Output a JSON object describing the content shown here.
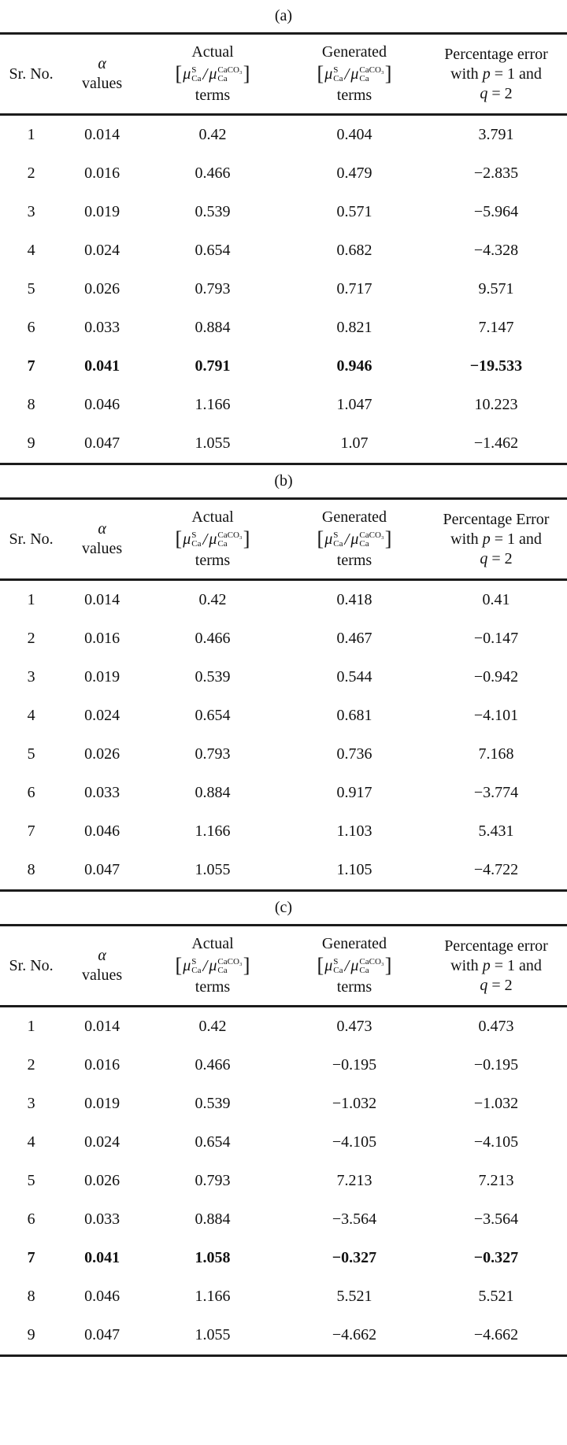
{
  "page": {
    "background": "#ffffff",
    "text_color": "#111111",
    "rule_color": "#1c1c1c"
  },
  "formula": {
    "open": "[",
    "mu": "μ",
    "sup_numerator": "S",
    "sup_denominator": "CaCO₃",
    "sub": "Ca",
    "slash": "/",
    "close": "]"
  },
  "tables": [
    {
      "caption": "(a)",
      "header": {
        "col1": "Sr. No.",
        "col2_line1": "α",
        "col2_line2": "values",
        "col3_line1": "Actual",
        "col3_line3": "terms",
        "col4_line1": "Generated",
        "col4_line3": "terms",
        "col5_lines": [
          [
            {
              "text": "Percentage error"
            }
          ],
          [
            {
              "text": "with "
            },
            {
              "text": "p",
              "italic": true
            },
            {
              "text": " = 1 and"
            }
          ],
          [
            {
              "text": "q",
              "italic": true
            },
            {
              "text": " = 2"
            }
          ]
        ]
      },
      "rows": [
        {
          "sr": "1",
          "alpha": "0.014",
          "actual": "0.42",
          "generated": "0.404",
          "error": "3.791",
          "bold": false
        },
        {
          "sr": "2",
          "alpha": "0.016",
          "actual": "0.466",
          "generated": "0.479",
          "error": "−2.835",
          "bold": false
        },
        {
          "sr": "3",
          "alpha": "0.019",
          "actual": "0.539",
          "generated": "0.571",
          "error": "−5.964",
          "bold": false
        },
        {
          "sr": "4",
          "alpha": "0.024",
          "actual": "0.654",
          "generated": "0.682",
          "error": "−4.328",
          "bold": false
        },
        {
          "sr": "5",
          "alpha": "0.026",
          "actual": "0.793",
          "generated": "0.717",
          "error": "9.571",
          "bold": false
        },
        {
          "sr": "6",
          "alpha": "0.033",
          "actual": "0.884",
          "generated": "0.821",
          "error": "7.147",
          "bold": false
        },
        {
          "sr": "7",
          "alpha": "0.041",
          "actual": "0.791",
          "generated": "0.946",
          "error": "−19.533",
          "bold": true
        },
        {
          "sr": "8",
          "alpha": "0.046",
          "actual": "1.166",
          "generated": "1.047",
          "error": "10.223",
          "bold": false
        },
        {
          "sr": "9",
          "alpha": "0.047",
          "actual": "1.055",
          "generated": "1.07",
          "error": "−1.462",
          "bold": false
        }
      ]
    },
    {
      "caption": "(b)",
      "header": {
        "col1": "Sr. No.",
        "col2_line1": "α",
        "col2_line2": "values",
        "col3_line1": "Actual",
        "col3_line3": "terms",
        "col4_line1": "Generated",
        "col4_line3": "terms",
        "col5_lines": [
          [
            {
              "text": "Percentage Error"
            }
          ],
          [
            {
              "text": "with "
            },
            {
              "text": "p",
              "italic": true
            },
            {
              "text": " = 1 and"
            }
          ],
          [
            {
              "text": "q",
              "italic": true
            },
            {
              "text": " = 2"
            }
          ]
        ]
      },
      "rows": [
        {
          "sr": "1",
          "alpha": "0.014",
          "actual": "0.42",
          "generated": "0.418",
          "error": "0.41",
          "bold": false
        },
        {
          "sr": "2",
          "alpha": "0.016",
          "actual": "0.466",
          "generated": "0.467",
          "error": "−0.147",
          "bold": false
        },
        {
          "sr": "3",
          "alpha": "0.019",
          "actual": "0.539",
          "generated": "0.544",
          "error": "−0.942",
          "bold": false
        },
        {
          "sr": "4",
          "alpha": "0.024",
          "actual": "0.654",
          "generated": "0.681",
          "error": "−4.101",
          "bold": false
        },
        {
          "sr": "5",
          "alpha": "0.026",
          "actual": "0.793",
          "generated": "0.736",
          "error": "7.168",
          "bold": false
        },
        {
          "sr": "6",
          "alpha": "0.033",
          "actual": "0.884",
          "generated": "0.917",
          "error": "−3.774",
          "bold": false
        },
        {
          "sr": "7",
          "alpha": "0.046",
          "actual": "1.166",
          "generated": "1.103",
          "error": "5.431",
          "bold": false
        },
        {
          "sr": "8",
          "alpha": "0.047",
          "actual": "1.055",
          "generated": "1.105",
          "error": "−4.722",
          "bold": false
        }
      ]
    },
    {
      "caption": "(c)",
      "header": {
        "col1": "Sr. No.",
        "col2_line1": "α",
        "col2_line2": "values",
        "col3_line1": "Actual",
        "col3_line3": "terms",
        "col4_line1": "Generated",
        "col4_line3": "terms",
        "col5_lines": [
          [
            {
              "text": "Percentage error"
            }
          ],
          [
            {
              "text": "with "
            },
            {
              "text": "p",
              "italic": true
            },
            {
              "text": " = 1 and"
            }
          ],
          [
            {
              "text": "q",
              "italic": true
            },
            {
              "text": " = 2"
            }
          ]
        ]
      },
      "rows": [
        {
          "sr": "1",
          "alpha": "0.014",
          "actual": "0.42",
          "generated": "0.473",
          "error": "0.473",
          "bold": false
        },
        {
          "sr": "2",
          "alpha": "0.016",
          "actual": "0.466",
          "generated": "−0.195",
          "error": "−0.195",
          "bold": false
        },
        {
          "sr": "3",
          "alpha": "0.019",
          "actual": "0.539",
          "generated": "−1.032",
          "error": "−1.032",
          "bold": false
        },
        {
          "sr": "4",
          "alpha": "0.024",
          "actual": "0.654",
          "generated": "−4.105",
          "error": "−4.105",
          "bold": false
        },
        {
          "sr": "5",
          "alpha": "0.026",
          "actual": "0.793",
          "generated": "7.213",
          "error": "7.213",
          "bold": false
        },
        {
          "sr": "6",
          "alpha": "0.033",
          "actual": "0.884",
          "generated": "−3.564",
          "error": "−3.564",
          "bold": false
        },
        {
          "sr": "7",
          "alpha": "0.041",
          "actual": "1.058",
          "generated": "−0.327",
          "error": "−0.327",
          "bold": true
        },
        {
          "sr": "8",
          "alpha": "0.046",
          "actual": "1.166",
          "generated": "5.521",
          "error": "5.521",
          "bold": false
        },
        {
          "sr": "9",
          "alpha": "0.047",
          "actual": "1.055",
          "generated": "−4.662",
          "error": "−4.662",
          "bold": false
        }
      ]
    }
  ]
}
